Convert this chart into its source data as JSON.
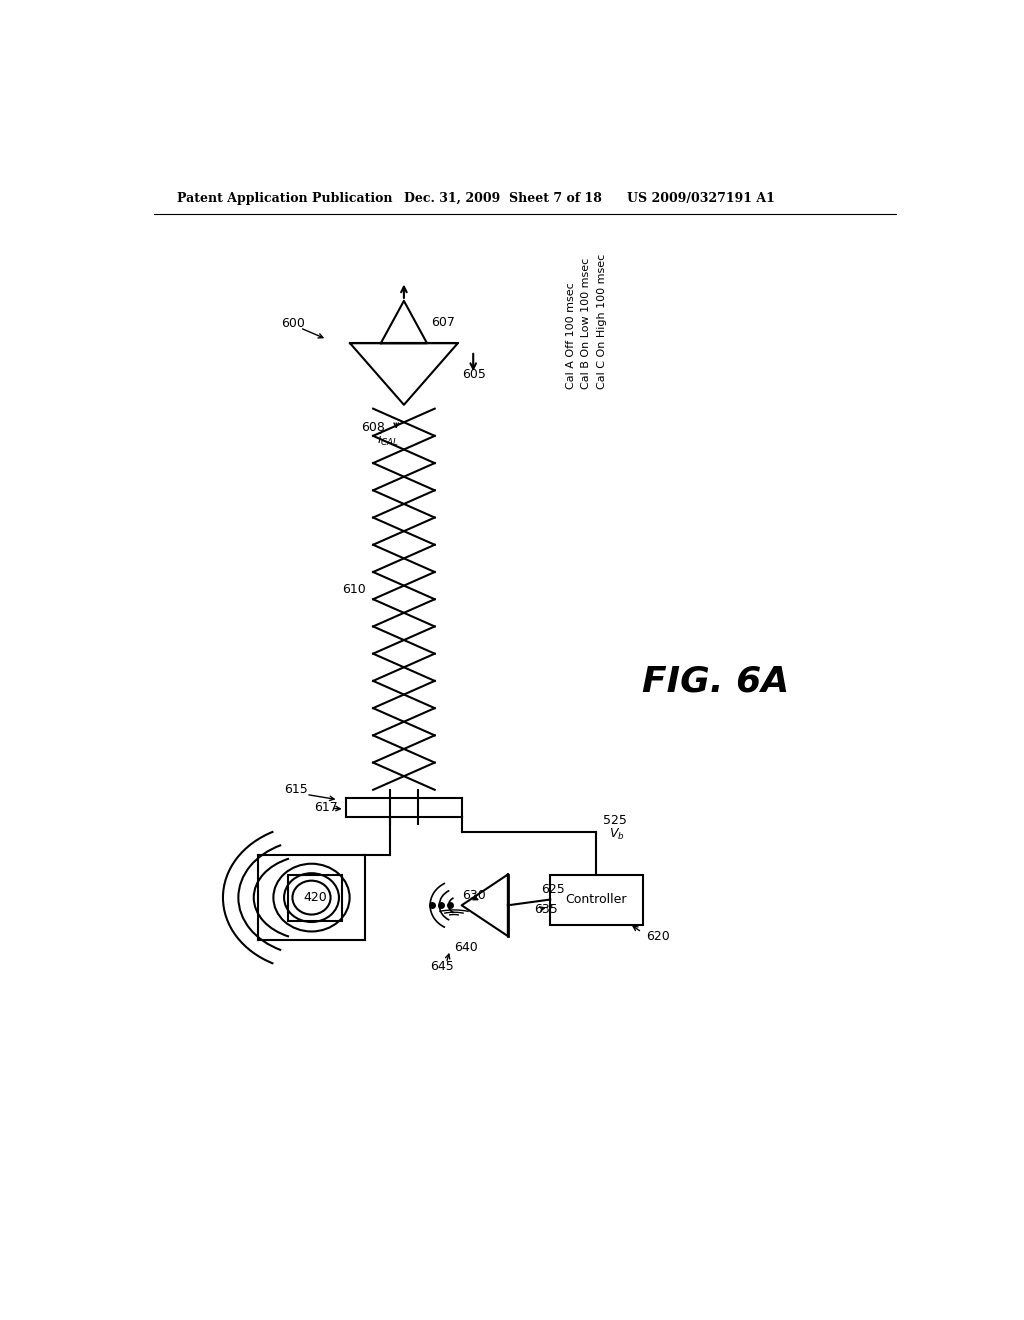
{
  "background_color": "#ffffff",
  "header_left": "Patent Application Publication",
  "header_mid": "Dec. 31, 2009  Sheet 7 of 18",
  "header_right": "US 2009/0327191 A1",
  "fig_label": "FIG. 6A",
  "cal_line1": "Cal A Off 100 msec",
  "cal_line2": "Cal B On Low 100 msec",
  "cal_line3": "Cal C On High 100 msec",
  "label_600": "600",
  "label_605": "605",
  "label_607": "607",
  "label_608": "608",
  "label_610": "610",
  "label_615": "615",
  "label_617": "617",
  "label_420": "420",
  "label_525": "525",
  "label_620": "620",
  "label_625": "625",
  "label_630": "630",
  "label_635": "635",
  "label_640": "640",
  "label_645": "645",
  "label_vb": "V",
  "label_controller": "Controller"
}
